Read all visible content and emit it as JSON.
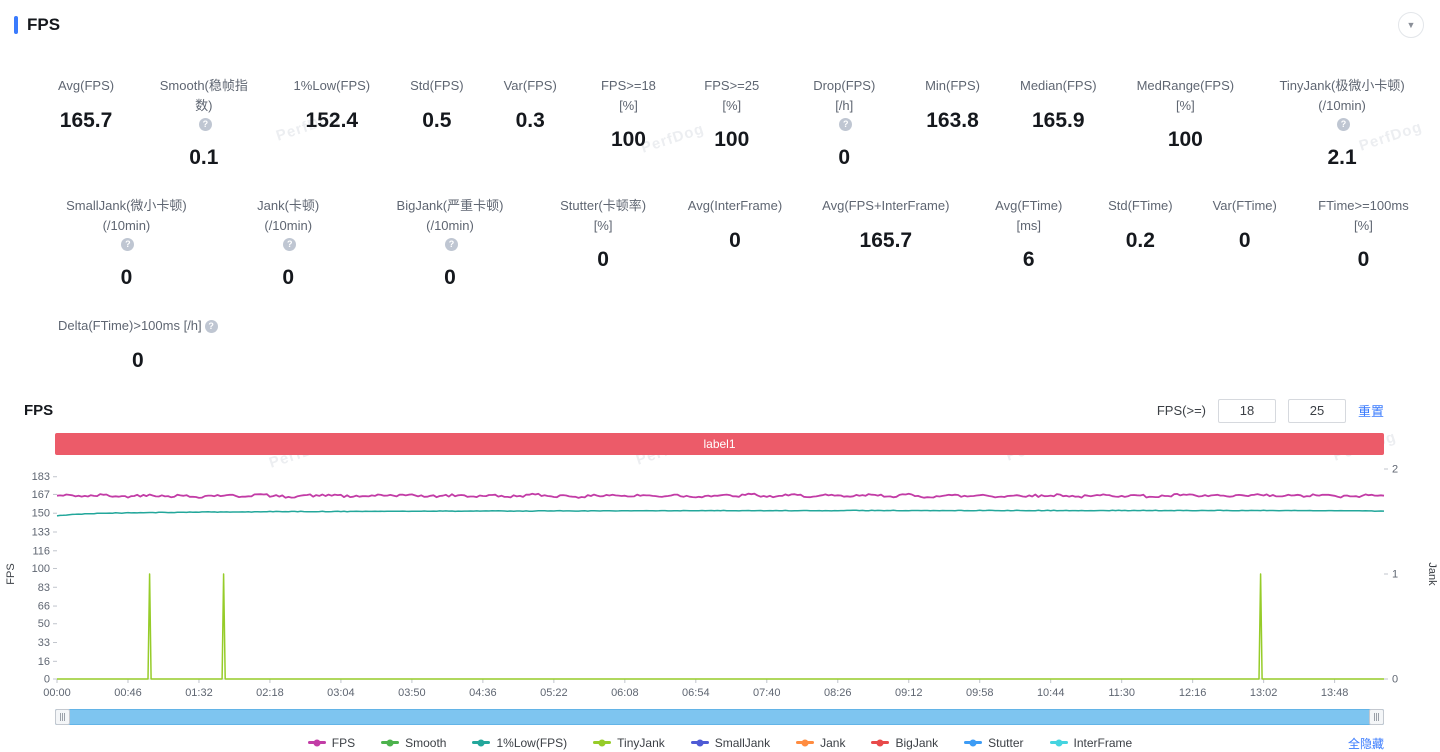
{
  "watermark": "PerfDog",
  "icons": {
    "help": "?",
    "collapse": "▼"
  },
  "header": {
    "title": "FPS"
  },
  "stats": {
    "row1": [
      {
        "label": "Avg(FPS)",
        "value": "165.7"
      },
      {
        "label": "Smooth(稳帧指数)",
        "value": "0.1",
        "help": true
      },
      {
        "label": "1%Low(FPS)",
        "value": "152.4"
      },
      {
        "label": "Std(FPS)",
        "value": "0.5"
      },
      {
        "label": "Var(FPS)",
        "value": "0.3"
      },
      {
        "label": "FPS>=18 [%]",
        "value": "100"
      },
      {
        "label": "FPS>=25 [%]",
        "value": "100"
      },
      {
        "label": "Drop(FPS) [/h]",
        "value": "0",
        "help": true
      },
      {
        "label": "Min(FPS)",
        "value": "163.8"
      },
      {
        "label": "Median(FPS)",
        "value": "165.9"
      },
      {
        "label": "MedRange(FPS)[%]",
        "value": "100"
      },
      {
        "label": "TinyJank(极微小卡顿) (/10min)",
        "value": "2.1",
        "help": true
      }
    ],
    "row2": [
      {
        "label": "SmallJank(微小卡顿) (/10min)",
        "value": "0",
        "help": true
      },
      {
        "label": "Jank(卡顿) (/10min)",
        "value": "0",
        "help": true
      },
      {
        "label": "BigJank(严重卡顿) (/10min)",
        "value": "0",
        "help": true
      },
      {
        "label": "Stutter(卡顿率) [%]",
        "value": "0"
      },
      {
        "label": "Avg(InterFrame)",
        "value": "0"
      },
      {
        "label": "Avg(FPS+InterFrame)",
        "value": "165.7"
      },
      {
        "label": "Avg(FTime) [ms]",
        "value": "6"
      },
      {
        "label": "Std(FTime)",
        "value": "0.2"
      },
      {
        "label": "Var(FTime)",
        "value": "0"
      },
      {
        "label": "FTime>=100ms [%]",
        "value": "0"
      }
    ],
    "row3": [
      {
        "label": "Delta(FTime)>100ms [/h]",
        "value": "0",
        "help": true
      }
    ]
  },
  "chart_section": {
    "title": "FPS",
    "threshold_label": "FPS(>=)",
    "threshold1": "18",
    "threshold2": "25",
    "reset_label": "重置",
    "banner_label": "label1",
    "hide_all_label": "全隐藏"
  },
  "chart_data": {
    "type": "line",
    "x_tick_labels": [
      "00:00",
      "00:46",
      "01:32",
      "02:18",
      "03:04",
      "03:50",
      "04:36",
      "05:22",
      "06:08",
      "06:54",
      "07:40",
      "08:26",
      "09:12",
      "09:58",
      "10:44",
      "11:30",
      "12:16",
      "13:02",
      "13:48"
    ],
    "x_tick_seconds": [
      0,
      46,
      92,
      138,
      184,
      230,
      276,
      322,
      368,
      414,
      460,
      506,
      552,
      598,
      644,
      690,
      736,
      782,
      828
    ],
    "x_max_seconds": 860,
    "sample_interval_seconds": 10,
    "left_axis": {
      "label": "FPS",
      "ticks": [
        183,
        167,
        150,
        133,
        116,
        100,
        83,
        66,
        50,
        33,
        16,
        0
      ],
      "max": 190
    },
    "right_axis": {
      "label": "Jank",
      "ticks": [
        2,
        1,
        0
      ],
      "max": 2
    },
    "series": [
      {
        "name": "FPS",
        "color": "#c23ca6",
        "axis": "left",
        "jitter": 1.2,
        "values": [
          165.8,
          166.2,
          165.1,
          166.7,
          164.9,
          165.6,
          166.9,
          165.2,
          166.1,
          164.7,
          165.9,
          166.4,
          165.0,
          167.1,
          165.5,
          164.8,
          166.3,
          165.7,
          166.8,
          164.6,
          165.4,
          166.6,
          165.2,
          167.0,
          164.9,
          165.8,
          166.2,
          165.1,
          166.5,
          164.8,
          165.7,
          166.9,
          165.3,
          166.0,
          164.7,
          165.9,
          166.7,
          165.1,
          166.4,
          165.0,
          166.8,
          164.9,
          165.6,
          166.2,
          165.3,
          167.2,
          164.8,
          165.7,
          166.5,
          165.0,
          166.1,
          164.9,
          165.8,
          166.6,
          165.2,
          166.9,
          164.7,
          165.5,
          166.3,
          165.1,
          166.7,
          164.8,
          165.9,
          166.1,
          165.4,
          166.8,
          164.9,
          165.3,
          166.5,
          165.7,
          166.2,
          164.8,
          165.6,
          166.9,
          165.1,
          166.4,
          164.9,
          165.8,
          166.6,
          165.3,
          166.0,
          165.5,
          166.7,
          164.9,
          165.2,
          166.3,
          165.8
        ]
      },
      {
        "name": "1%Low(FPS)",
        "color": "#23a79b",
        "axis": "left",
        "jitter": 0.25,
        "values": [
          147.6,
          148.9,
          149.5,
          149.9,
          150.2,
          150.4,
          150.6,
          150.7,
          150.9,
          151.0,
          151.1,
          151.2,
          151.2,
          151.3,
          151.4,
          151.4,
          151.5,
          151.5,
          151.6,
          151.6,
          151.7,
          151.7,
          151.8,
          151.8,
          151.8,
          151.9,
          151.9,
          151.9,
          152.0,
          152.0,
          152.0,
          152.0,
          152.1,
          152.1,
          152.1,
          152.1,
          152.1,
          152.2,
          152.2,
          152.2,
          152.2,
          152.2,
          152.2,
          152.3,
          152.3,
          152.3,
          152.3,
          152.3,
          152.3,
          152.3,
          152.3,
          152.4,
          152.4,
          152.4,
          152.4,
          152.4,
          152.4,
          152.4,
          152.4,
          152.4,
          152.4,
          152.4,
          152.4,
          152.4,
          152.4,
          152.4,
          152.4,
          152.4,
          152.4,
          152.4,
          152.4,
          152.4,
          152.4,
          152.4,
          152.4,
          152.4,
          152.4,
          152.4,
          152.4,
          152.4,
          152.4,
          152.4,
          152.3,
          152.3,
          152.2,
          152.1,
          151.9
        ]
      },
      {
        "name": "TinyJank",
        "color": "#96cc29",
        "axis": "right",
        "points": [
          [
            0,
            0
          ],
          [
            59,
            0
          ],
          [
            60,
            1
          ],
          [
            61,
            0
          ],
          [
            107,
            0
          ],
          [
            108,
            1
          ],
          [
            109,
            0
          ],
          [
            779,
            0
          ],
          [
            780,
            1
          ],
          [
            781,
            0
          ],
          [
            860,
            0
          ]
        ]
      }
    ],
    "legend": [
      {
        "name": "FPS",
        "color": "#c23ca6"
      },
      {
        "name": "Smooth",
        "color": "#4db34d"
      },
      {
        "name": "1%Low(FPS)",
        "color": "#23a79b"
      },
      {
        "name": "TinyJank",
        "color": "#96cc29"
      },
      {
        "name": "SmallJank",
        "color": "#4f5bd5"
      },
      {
        "name": "Jank",
        "color": "#ff8c40"
      },
      {
        "name": "BigJank",
        "color": "#e84a4a"
      },
      {
        "name": "Stutter",
        "color": "#3d9cf5"
      },
      {
        "name": "InterFrame",
        "color": "#45d4e0"
      }
    ]
  }
}
